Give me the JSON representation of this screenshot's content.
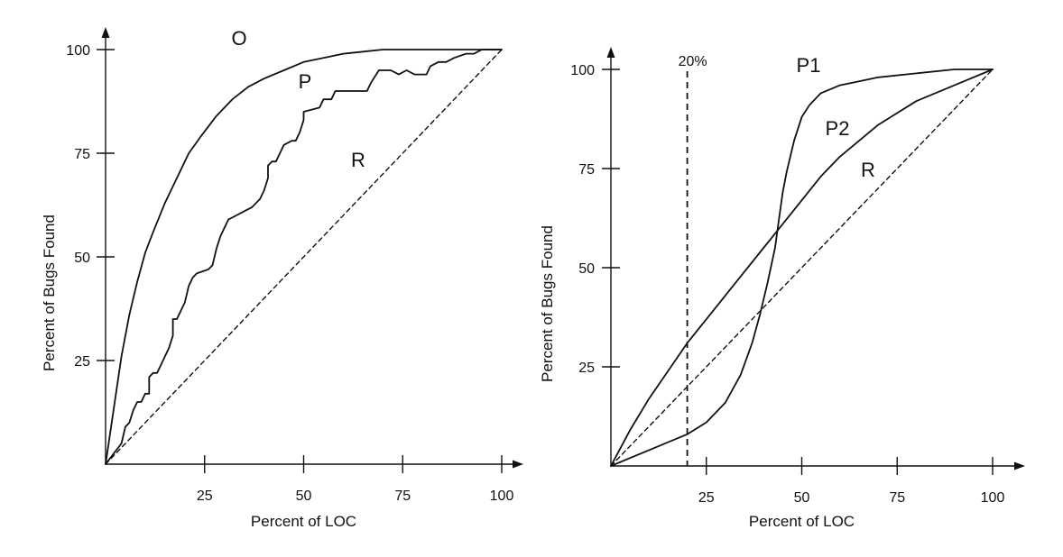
{
  "colors": {
    "ink": "#111111",
    "background": "#ffffff"
  },
  "chart_data": [
    {
      "type": "line",
      "title": "",
      "xlabel": "Percent of LOC",
      "ylabel": "Percent of Bugs Found",
      "xlim": [
        0,
        100
      ],
      "ylim": [
        0,
        100
      ],
      "xticks": [
        25,
        50,
        75,
        100
      ],
      "yticks": [
        25,
        50,
        75,
        100
      ],
      "x_tick_labels": [
        "25",
        "50",
        "75",
        "100"
      ],
      "y_tick_labels": [
        "25",
        "50",
        "75",
        "100"
      ],
      "grid": false,
      "legend": "none",
      "series": [
        {
          "name": "O",
          "style": "solid",
          "points": [
            [
              0,
              0
            ],
            [
              2,
              13
            ],
            [
              4,
              26
            ],
            [
              6,
              36
            ],
            [
              8,
              44
            ],
            [
              10,
              51
            ],
            [
              12,
              56
            ],
            [
              15,
              63
            ],
            [
              18,
              69
            ],
            [
              21,
              75
            ],
            [
              24,
              79
            ],
            [
              28,
              84
            ],
            [
              32,
              88
            ],
            [
              36,
              91
            ],
            [
              40,
              93
            ],
            [
              45,
              95
            ],
            [
              50,
              97
            ],
            [
              55,
              98
            ],
            [
              60,
              99
            ],
            [
              65,
              99.5
            ],
            [
              70,
              100
            ],
            [
              80,
              100
            ],
            [
              90,
              100
            ],
            [
              100,
              100
            ]
          ]
        },
        {
          "name": "P",
          "style": "solid",
          "points": [
            [
              0,
              0
            ],
            [
              4,
              5
            ],
            [
              5,
              9
            ],
            [
              6,
              10
            ],
            [
              7,
              13
            ],
            [
              8,
              15
            ],
            [
              9,
              15
            ],
            [
              10,
              17
            ],
            [
              11,
              17
            ],
            [
              11,
              21
            ],
            [
              12,
              22
            ],
            [
              13,
              22
            ],
            [
              14,
              24
            ],
            [
              15,
              26
            ],
            [
              16,
              28
            ],
            [
              17,
              31
            ],
            [
              17,
              35
            ],
            [
              18,
              35
            ],
            [
              19,
              37
            ],
            [
              20,
              39
            ],
            [
              21,
              43
            ],
            [
              22,
              45
            ],
            [
              23,
              46
            ],
            [
              26,
              47
            ],
            [
              27,
              48
            ],
            [
              28,
              52
            ],
            [
              29,
              55
            ],
            [
              30,
              57
            ],
            [
              31,
              59
            ],
            [
              33,
              60
            ],
            [
              35,
              61
            ],
            [
              37,
              62
            ],
            [
              38,
              63
            ],
            [
              39,
              64
            ],
            [
              40,
              66
            ],
            [
              41,
              69
            ],
            [
              41,
              72
            ],
            [
              42,
              73
            ],
            [
              43,
              73
            ],
            [
              44,
              75
            ],
            [
              45,
              77
            ],
            [
              47,
              78
            ],
            [
              48,
              78
            ],
            [
              49,
              80
            ],
            [
              50,
              83
            ],
            [
              50,
              85
            ],
            [
              54,
              86
            ],
            [
              55,
              88
            ],
            [
              57,
              88
            ],
            [
              58,
              90
            ],
            [
              62,
              90
            ],
            [
              63,
              90
            ],
            [
              66,
              90
            ],
            [
              67,
              92
            ],
            [
              69,
              95
            ],
            [
              72,
              95
            ],
            [
              74,
              94
            ],
            [
              76,
              95
            ],
            [
              78,
              94
            ],
            [
              81,
              94
            ],
            [
              82,
              96
            ],
            [
              84,
              97
            ],
            [
              86,
              97
            ],
            [
              88,
              98
            ],
            [
              91,
              99
            ],
            [
              93,
              99
            ],
            [
              95,
              100
            ],
            [
              97,
              100
            ],
            [
              100,
              100
            ]
          ]
        },
        {
          "name": "R",
          "style": "dashed",
          "points": [
            [
              0,
              0
            ],
            [
              100,
              100
            ]
          ]
        }
      ],
      "annotations": []
    },
    {
      "type": "line",
      "title": "",
      "xlabel": "Percent of LOC",
      "ylabel": "Percent of Bugs Found",
      "xlim": [
        0,
        100
      ],
      "ylim": [
        0,
        100
      ],
      "xticks": [
        25,
        50,
        75,
        100
      ],
      "yticks": [
        25,
        50,
        75,
        100
      ],
      "x_tick_labels": [
        "25",
        "50",
        "75",
        "100"
      ],
      "y_tick_labels": [
        "25",
        "50",
        "75",
        "100"
      ],
      "grid": false,
      "legend": "none",
      "series": [
        {
          "name": "P1",
          "style": "solid",
          "points": [
            [
              0,
              0
            ],
            [
              5,
              2
            ],
            [
              10,
              4
            ],
            [
              15,
              6
            ],
            [
              20,
              8
            ],
            [
              25,
              11
            ],
            [
              30,
              16
            ],
            [
              34,
              23
            ],
            [
              37,
              31
            ],
            [
              39,
              38
            ],
            [
              41,
              46
            ],
            [
              43,
              55
            ],
            [
              44,
              62
            ],
            [
              45,
              69
            ],
            [
              46,
              74
            ],
            [
              47,
              78
            ],
            [
              48,
              82
            ],
            [
              50,
              88
            ],
            [
              52,
              91
            ],
            [
              55,
              94
            ],
            [
              60,
              96
            ],
            [
              65,
              97
            ],
            [
              70,
              98
            ],
            [
              80,
              99
            ],
            [
              90,
              100
            ],
            [
              100,
              100
            ]
          ]
        },
        {
          "name": "P2",
          "style": "solid",
          "points": [
            [
              0,
              0
            ],
            [
              5,
              9
            ],
            [
              10,
              17
            ],
            [
              15,
              24
            ],
            [
              20,
              31
            ],
            [
              25,
              37
            ],
            [
              30,
              43
            ],
            [
              35,
              49
            ],
            [
              40,
              55
            ],
            [
              45,
              61
            ],
            [
              50,
              67
            ],
            [
              55,
              73
            ],
            [
              60,
              78
            ],
            [
              65,
              82
            ],
            [
              70,
              86
            ],
            [
              80,
              92
            ],
            [
              90,
              96
            ],
            [
              100,
              100
            ]
          ]
        },
        {
          "name": "R",
          "style": "dashed",
          "points": [
            [
              0,
              0
            ],
            [
              100,
              100
            ]
          ]
        }
      ],
      "annotations": [
        {
          "type": "vline",
          "x": 20,
          "style": "dashed",
          "label": "20%"
        }
      ]
    }
  ]
}
